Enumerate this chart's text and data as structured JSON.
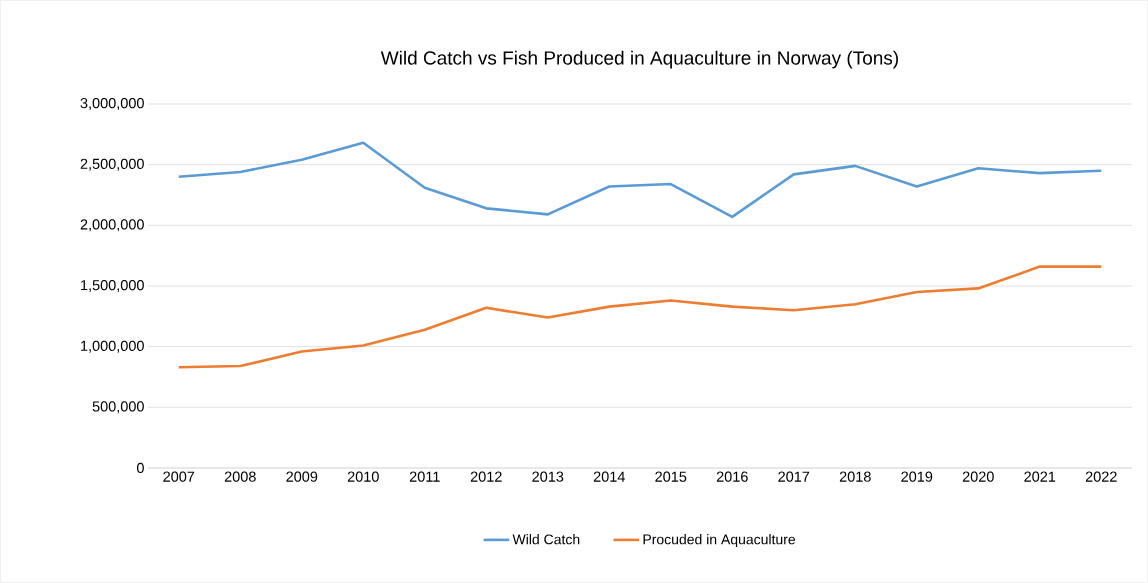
{
  "chart_data": {
    "type": "line",
    "title": "Wild Catch vs Fish Produced in Aquaculture in Norway (Tons)",
    "categories": [
      "2007",
      "2008",
      "2009",
      "2010",
      "2011",
      "2012",
      "2013",
      "2014",
      "2015",
      "2016",
      "2017",
      "2018",
      "2019",
      "2020",
      "2021",
      "2022"
    ],
    "series": [
      {
        "name": "Wild Catch",
        "color": "#5b9bd5",
        "values": [
          2400000,
          2440000,
          2540000,
          2680000,
          2310000,
          2140000,
          2090000,
          2320000,
          2340000,
          2070000,
          2420000,
          2490000,
          2320000,
          2470000,
          2430000,
          2450000
        ]
      },
      {
        "name": "Procuded in Aquaculture",
        "color": "#ed7d31",
        "values": [
          830000,
          840000,
          960000,
          1010000,
          1140000,
          1320000,
          1240000,
          1330000,
          1380000,
          1330000,
          1300000,
          1350000,
          1450000,
          1480000,
          1660000,
          1660000
        ]
      }
    ],
    "ylim": [
      0,
      3000000
    ],
    "yticks": [
      {
        "value": 0,
        "label": "0"
      },
      {
        "value": 500000,
        "label": "500,000"
      },
      {
        "value": 1000000,
        "label": "1,000,000"
      },
      {
        "value": 1500000,
        "label": "1,500,000"
      },
      {
        "value": 2000000,
        "label": "2,000,000"
      },
      {
        "value": 2500000,
        "label": "2,500,000"
      },
      {
        "value": 3000000,
        "label": "3,000,000"
      }
    ],
    "grid": "y",
    "legend": "bottom",
    "marker": "none",
    "line_style": "solid"
  }
}
